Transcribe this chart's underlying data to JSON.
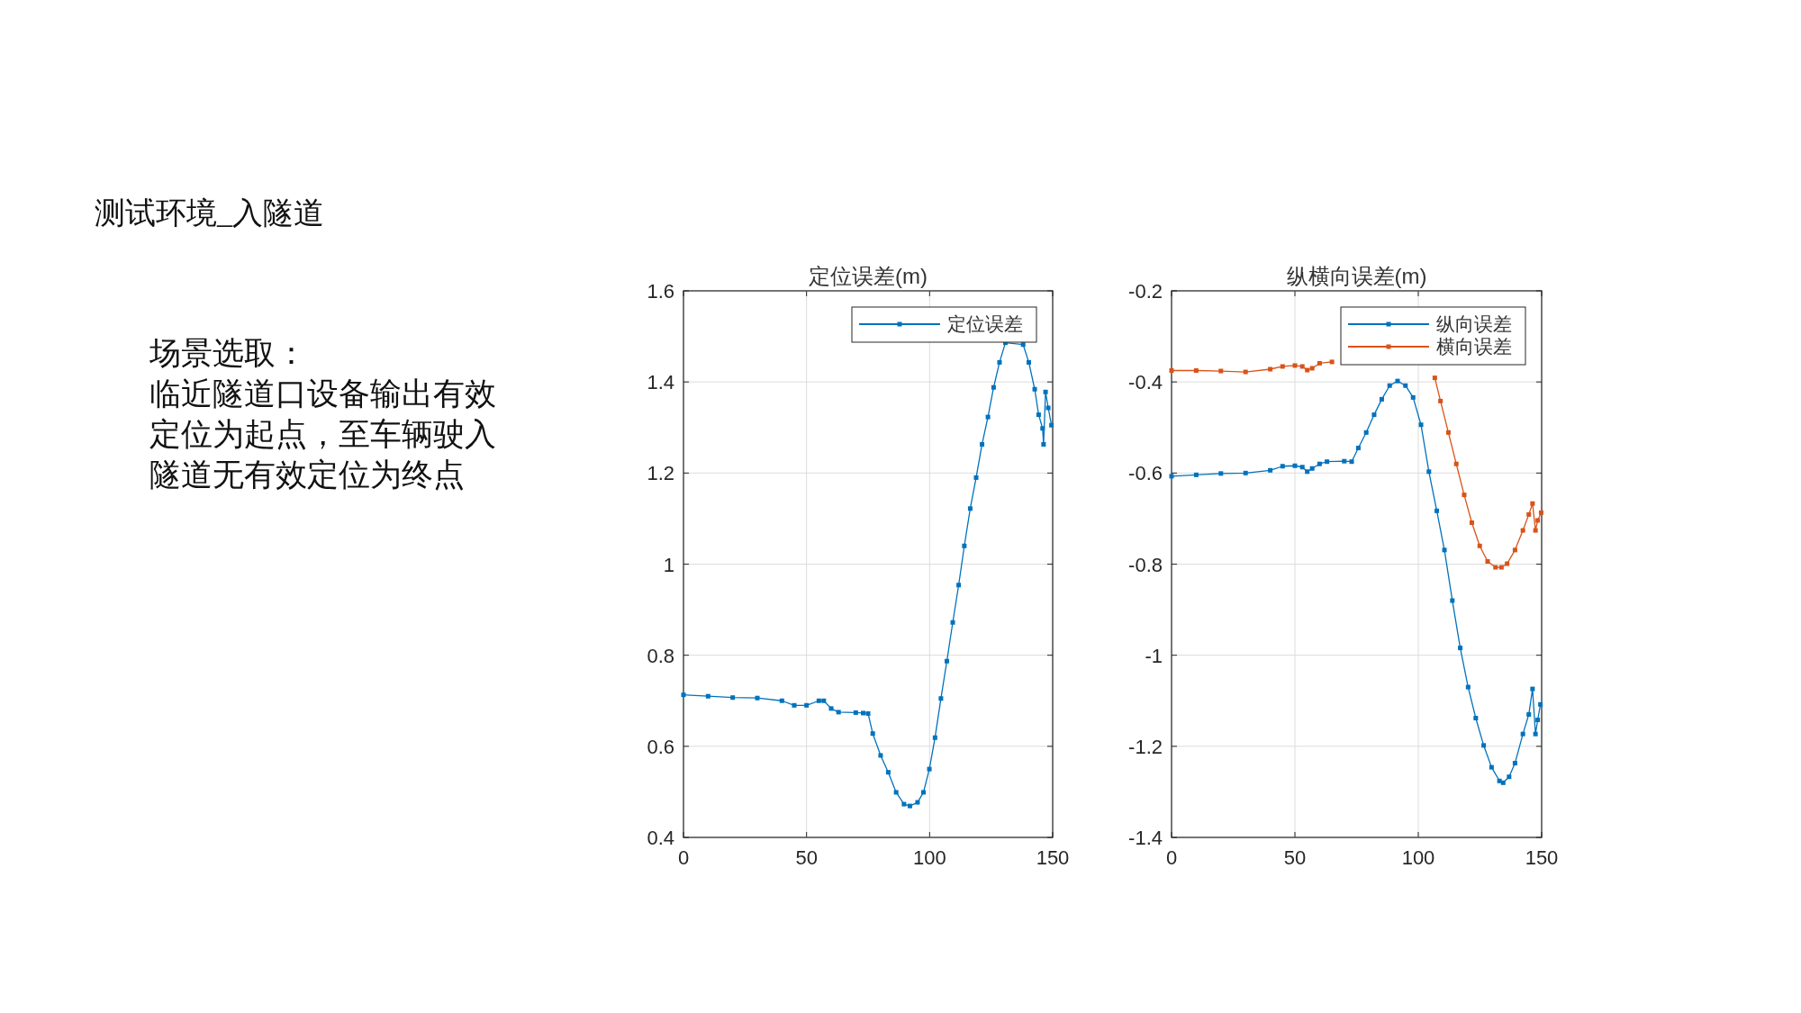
{
  "chart_data": [
    {
      "type": "other",
      "title": "测试环境_入隧道",
      "annotations": [
        "场景选取：",
        "临近隧道口设备输出有效",
        "定位为起点，至车辆驶入",
        "隧道无有效定位为终点"
      ]
    },
    {
      "type": "line",
      "title": "定位误差(m)",
      "xlim": [
        0,
        150
      ],
      "ylim": [
        0.4,
        1.6
      ],
      "xticks": [
        0,
        50,
        100,
        150
      ],
      "yticks": [
        0.4,
        0.6,
        0.8,
        1,
        1.2,
        1.4,
        1.6
      ],
      "grid": true,
      "legend": "top right",
      "marker": "square",
      "line_style": "solid",
      "series": [
        {
          "name": "定位误差",
          "color": "#0072bd",
          "x": [
            0,
            10,
            20,
            30,
            40,
            45,
            50,
            55,
            57,
            60,
            63,
            70,
            73,
            75,
            76.9,
            80.1,
            83.2,
            86.4,
            89.6,
            92,
            95.1,
            97.5,
            99.9,
            102.2,
            104.6,
            107,
            109.4,
            111.8,
            114.1,
            116.5,
            118.9,
            121.3,
            123.7,
            126,
            128.4,
            130.8,
            138,
            140.3,
            142.7,
            144.3,
            145.9,
            146.3,
            147.1,
            148.2,
            149.5
          ],
          "values": [
            0.713,
            0.71,
            0.707,
            0.706,
            0.7,
            0.69,
            0.69,
            0.7,
            0.7,
            0.683,
            0.675,
            0.674,
            0.673,
            0.672,
            0.628,
            0.58,
            0.543,
            0.499,
            0.473,
            0.469,
            0.477,
            0.499,
            0.55,
            0.619,
            0.705,
            0.787,
            0.872,
            0.954,
            1.04,
            1.122,
            1.19,
            1.263,
            1.323,
            1.388,
            1.443,
            1.486,
            1.482,
            1.443,
            1.384,
            1.328,
            1.298,
            1.263,
            1.378,
            1.343,
            1.305
          ]
        }
      ]
    },
    {
      "type": "line",
      "title": "纵横向误差(m)",
      "xlim": [
        0,
        150
      ],
      "ylim": [
        -1.4,
        -0.2
      ],
      "xticks": [
        0,
        50,
        100,
        150
      ],
      "yticks": [
        -1.4,
        -1.2,
        -1,
        -0.8,
        -0.6,
        -0.4,
        -0.2
      ],
      "grid": true,
      "legend": "top right",
      "marker": "square",
      "line_style": "solid",
      "series": [
        {
          "name": "纵向误差",
          "color": "#0072bd",
          "x": [
            0,
            10,
            20,
            30,
            40,
            45,
            50,
            53,
            55,
            57,
            60,
            63,
            70,
            73,
            75.7,
            78.9,
            82.1,
            85.2,
            88.4,
            91.6,
            94.8,
            97.9,
            101.1,
            104.3,
            107.5,
            110.6,
            113.8,
            117,
            120.2,
            123.3,
            126.5,
            129.7,
            132.9,
            134.4,
            136.8,
            139.2,
            142.4,
            144.8,
            146.3,
            147.5,
            148.4,
            149.5
          ],
          "values": [
            -0.607,
            -0.604,
            -0.601,
            -0.6,
            -0.594,
            -0.585,
            -0.584,
            -0.587,
            -0.597,
            -0.59,
            -0.58,
            -0.575,
            -0.574,
            -0.575,
            -0.545,
            -0.511,
            -0.472,
            -0.438,
            -0.408,
            -0.398,
            -0.408,
            -0.434,
            -0.494,
            -0.597,
            -0.683,
            -0.769,
            -0.88,
            -0.984,
            -1.07,
            -1.138,
            -1.198,
            -1.246,
            -1.276,
            -1.28,
            -1.267,
            -1.237,
            -1.173,
            -1.13,
            -1.074,
            -1.173,
            -1.142,
            -1.108
          ]
        },
        {
          "name": "横向误差",
          "color": "#d95319",
          "x": [
            0,
            10,
            20,
            30,
            40,
            45,
            50,
            53,
            55,
            57,
            60,
            65
          ],
          "values": [
            -0.375,
            -0.375,
            -0.376,
            -0.378,
            -0.372,
            -0.366,
            -0.364,
            -0.366,
            -0.374,
            -0.37,
            -0.359,
            -0.356
          ]
        },
        {
          "color": "#d95319",
          "x": [
            106.7,
            109,
            112.2,
            115.4,
            118.6,
            121.7,
            124.9,
            128.1,
            131.3,
            133.7,
            136,
            139.2,
            142.4,
            144.8,
            146.3,
            147.5,
            148.4,
            149.8
          ],
          "values": [
            -0.391,
            -0.442,
            -0.511,
            -0.58,
            -0.648,
            -0.709,
            -0.76,
            -0.794,
            -0.807,
            -0.807,
            -0.799,
            -0.769,
            -0.726,
            -0.691,
            -0.667,
            -0.726,
            -0.704,
            -0.687
          ]
        }
      ]
    }
  ]
}
